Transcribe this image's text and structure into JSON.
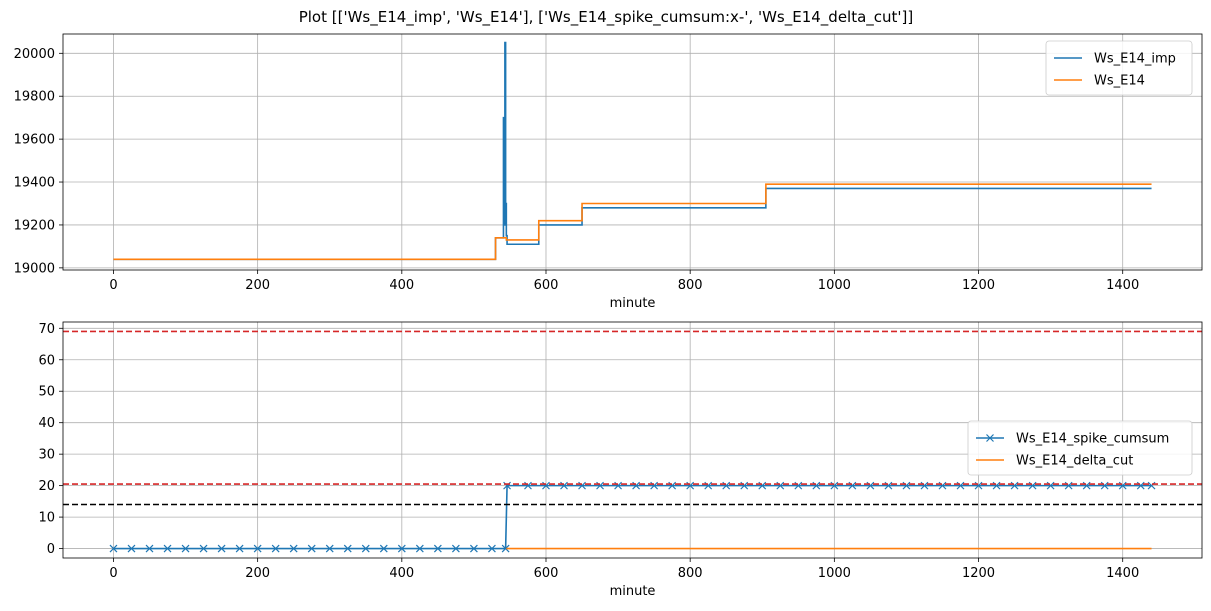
{
  "title": "Plot [['Ws_E14_imp', 'Ws_E14'], ['Ws_E14_spike_cumsum:x-', 'Ws_E14_delta_cut']]",
  "colors": {
    "blue": "#1f77b4",
    "orange": "#ff7f0e",
    "red": "#d62728",
    "black": "#000000",
    "grid": "#b0b0b0"
  },
  "chart_data": [
    {
      "type": "line",
      "xlabel": "minute",
      "ylabel": "",
      "xlim": [
        -70,
        1510
      ],
      "ylim": [
        18990,
        20090
      ],
      "xticks": [
        0,
        200,
        400,
        600,
        800,
        1000,
        1200,
        1400
      ],
      "yticks": [
        19000,
        19200,
        19400,
        19600,
        19800,
        20000
      ],
      "grid": true,
      "legend_position": "upper right",
      "series": [
        {
          "name": "Ws_E14_imp",
          "color": "#1f77b4",
          "marker": "",
          "x": [
            0,
            530,
            530,
            541,
            541,
            542,
            542,
            543,
            543,
            544,
            544,
            545,
            545,
            546,
            546,
            590,
            590,
            650,
            650,
            905,
            905,
            1440
          ],
          "y": [
            19040,
            19040,
            19140,
            19140,
            19700,
            19700,
            19200,
            19200,
            20050,
            20050,
            19300,
            19300,
            19150,
            19150,
            19110,
            19110,
            19200,
            19200,
            19280,
            19280,
            19370,
            19370
          ]
        },
        {
          "name": "Ws_E14",
          "color": "#ff7f0e",
          "marker": "",
          "x": [
            0,
            530,
            530,
            545,
            545,
            590,
            590,
            650,
            650,
            905,
            905,
            1440
          ],
          "y": [
            19040,
            19040,
            19140,
            19140,
            19130,
            19130,
            19220,
            19220,
            19300,
            19300,
            19390,
            19390
          ]
        }
      ]
    },
    {
      "type": "line",
      "xlabel": "minute",
      "ylabel": "",
      "xlim": [
        -70,
        1510
      ],
      "ylim": [
        -3,
        72
      ],
      "xticks": [
        0,
        200,
        400,
        600,
        800,
        1000,
        1200,
        1400
      ],
      "yticks": [
        0,
        10,
        20,
        30,
        40,
        50,
        60,
        70
      ],
      "grid": true,
      "legend_position": "center right",
      "hlines": [
        {
          "y": 69,
          "color": "#d62728"
        },
        {
          "y": 20.5,
          "color": "#d62728"
        },
        {
          "y": 14,
          "color": "#000000"
        }
      ],
      "series": [
        {
          "name": "Ws_E14_spike_cumsum",
          "color": "#1f77b4",
          "marker": "x",
          "x": [
            0,
            25,
            50,
            75,
            100,
            125,
            150,
            175,
            200,
            225,
            250,
            275,
            300,
            325,
            350,
            375,
            400,
            425,
            450,
            475,
            500,
            525,
            544,
            546,
            575,
            600,
            625,
            650,
            675,
            700,
            725,
            750,
            775,
            800,
            825,
            850,
            875,
            900,
            925,
            950,
            975,
            1000,
            1025,
            1050,
            1075,
            1100,
            1125,
            1150,
            1175,
            1200,
            1225,
            1250,
            1275,
            1300,
            1325,
            1350,
            1375,
            1400,
            1425,
            1440
          ],
          "y": [
            0,
            0,
            0,
            0,
            0,
            0,
            0,
            0,
            0,
            0,
            0,
            0,
            0,
            0,
            0,
            0,
            0,
            0,
            0,
            0,
            0,
            0,
            0,
            20,
            20,
            20,
            20,
            20,
            20,
            20,
            20,
            20,
            20,
            20,
            20,
            20,
            20,
            20,
            20,
            20,
            20,
            20,
            20,
            20,
            20,
            20,
            20,
            20,
            20,
            20,
            20,
            20,
            20,
            20,
            20,
            20,
            20,
            20,
            20,
            20
          ]
        },
        {
          "name": "Ws_E14_delta_cut",
          "color": "#ff7f0e",
          "marker": "",
          "x": [
            545,
            1440
          ],
          "y": [
            0,
            0
          ]
        }
      ]
    }
  ]
}
